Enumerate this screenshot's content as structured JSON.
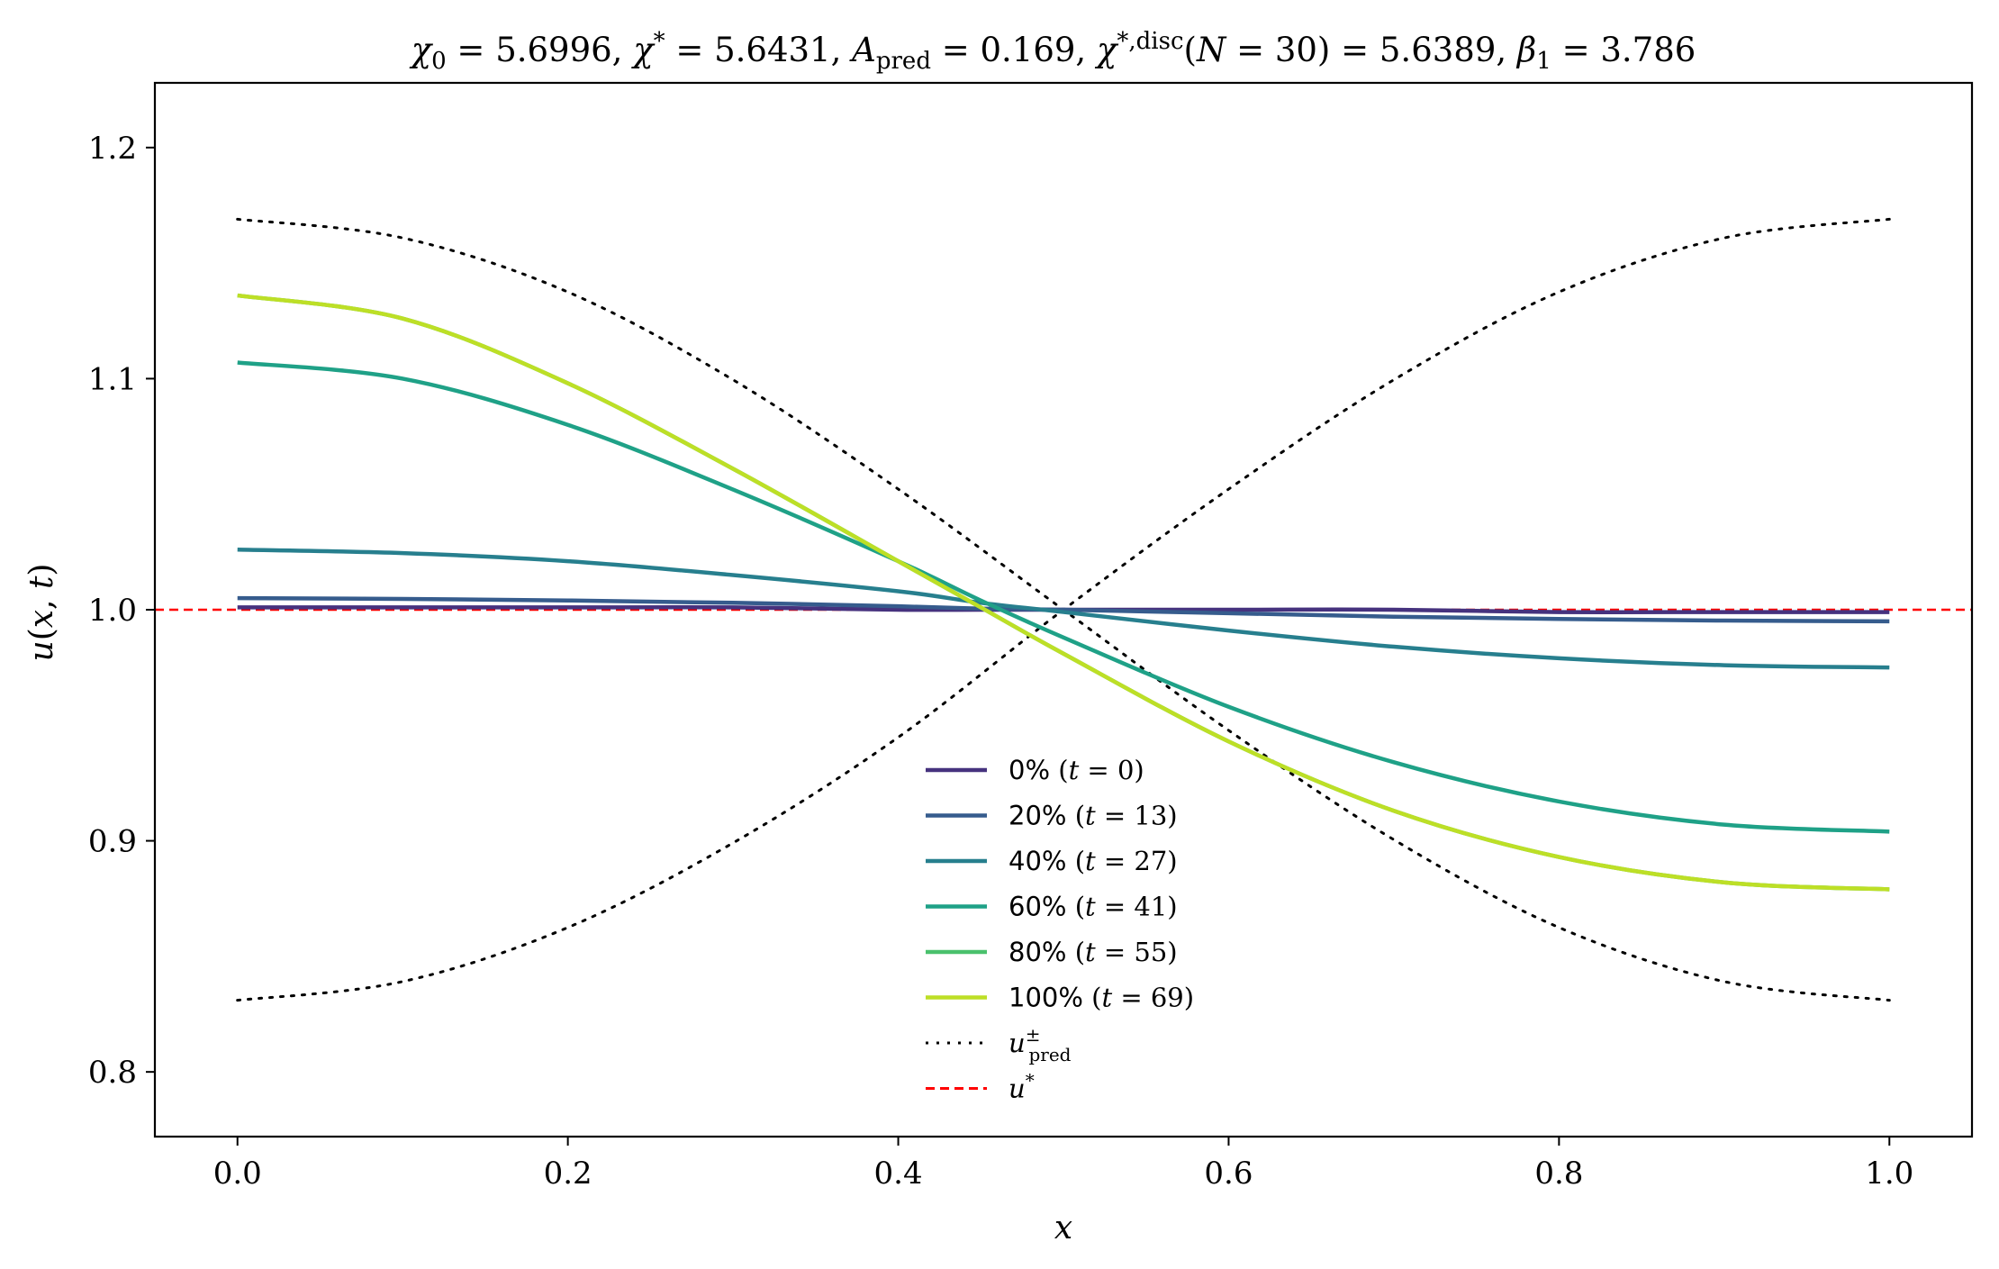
{
  "chart_data": {
    "type": "line",
    "title": "χ₀ = 5.6996,  χ* = 5.6431,  A_pred = 0.169,  χ*,disc(N = 30) = 5.6389,  β₁ = 3.786",
    "xlabel": "x",
    "ylabel": "u(x, t)",
    "xlim": [
      -0.05,
      1.05
    ],
    "ylim": [
      0.772,
      1.228
    ],
    "x_ticks": [
      0.0,
      0.2,
      0.4,
      0.6,
      0.8,
      1.0
    ],
    "x_tick_labels": [
      "0.0",
      "0.2",
      "0.4",
      "0.6",
      "0.8",
      "1.0"
    ],
    "y_ticks": [
      0.8,
      0.9,
      1.0,
      1.1,
      1.2
    ],
    "y_tick_labels": [
      "0.8",
      "0.9",
      "1.0",
      "1.1",
      "1.2"
    ],
    "grid": false,
    "legend_position": "bottom-center",
    "x": [
      0.0,
      0.1,
      0.2,
      0.3,
      0.4,
      0.45,
      0.5,
      0.6,
      0.7,
      0.8,
      0.9,
      1.0
    ],
    "series": [
      {
        "name": "0% (t = 0)",
        "color": "#46327e",
        "style": "solid",
        "values": [
          1.001,
          1.001,
          1.001,
          1.001,
          1.0,
          1.0,
          1.0,
          1.0,
          1.0,
          0.999,
          0.999,
          0.999
        ]
      },
      {
        "name": "20% (t = 13)",
        "color": "#365c8d",
        "style": "solid",
        "values": [
          1.005,
          1.0047,
          1.004,
          1.003,
          1.0015,
          1.0005,
          1.0,
          0.9985,
          0.997,
          0.996,
          0.9953,
          0.995
        ]
      },
      {
        "name": "40% (t = 27)",
        "color": "#277f8e",
        "style": "solid",
        "values": [
          1.026,
          1.0245,
          1.021,
          1.015,
          1.008,
          1.003,
          0.999,
          0.991,
          0.984,
          0.979,
          0.976,
          0.975
        ]
      },
      {
        "name": "60% (t = 41)",
        "color": "#1fa187",
        "style": "solid",
        "values": [
          1.107,
          1.1,
          1.08,
          1.052,
          1.021,
          1.004,
          0.988,
          0.958,
          0.934,
          0.917,
          0.907,
          0.904
        ]
      },
      {
        "name": "80% (t = 55)",
        "color": "#4ac16d",
        "style": "solid",
        "values": [
          1.136,
          1.126,
          1.098,
          1.061,
          1.021,
          1.001,
          0.981,
          0.943,
          0.913,
          0.893,
          0.882,
          0.879
        ]
      },
      {
        "name": "100% (t = 69)",
        "color": "#bddf26",
        "style": "solid",
        "values": [
          1.136,
          1.126,
          1.098,
          1.061,
          1.021,
          1.001,
          0.981,
          0.943,
          0.913,
          0.893,
          0.882,
          0.879
        ]
      }
    ],
    "reference_lines": [
      {
        "name": "u±pred (+)",
        "color": "#000000",
        "style": "dotted",
        "x": [
          0.0,
          0.1,
          0.2,
          0.3,
          0.4,
          0.5,
          0.6,
          0.7,
          0.8,
          0.9,
          1.0
        ],
        "values": [
          0.831,
          0.8391,
          0.8625,
          0.8991,
          0.9448,
          1.0,
          1.0522,
          1.0995,
          1.1375,
          1.1609,
          1.169
        ]
      },
      {
        "name": "u±pred (−)",
        "color": "#000000",
        "style": "dotted",
        "x": [
          0.0,
          0.1,
          0.2,
          0.3,
          0.4,
          0.5,
          0.6,
          0.7,
          0.8,
          0.9,
          1.0
        ],
        "values": [
          1.169,
          1.1609,
          1.1375,
          1.0995,
          1.0522,
          1.0,
          0.9478,
          0.9005,
          0.8625,
          0.8391,
          0.831
        ]
      },
      {
        "name": "u*",
        "color": "#ff0000",
        "style": "dashed",
        "y": 1.0
      }
    ],
    "legend": [
      {
        "label": "0% ",
        "math": "t = 0",
        "color": "#46327e",
        "style": "solid"
      },
      {
        "label": "20% ",
        "math": "t = 13",
        "color": "#365c8d",
        "style": "solid"
      },
      {
        "label": "40% ",
        "math": "t = 27",
        "color": "#277f8e",
        "style": "solid"
      },
      {
        "label": "60% ",
        "math": "t = 41",
        "color": "#1fa187",
        "style": "solid"
      },
      {
        "label": "80% ",
        "math": "t = 55",
        "color": "#4ac16d",
        "style": "solid"
      },
      {
        "label": "100% ",
        "math": "t = 69",
        "color": "#bddf26",
        "style": "solid"
      },
      {
        "label": "",
        "math": "u±pred",
        "color": "#000000",
        "style": "dotted"
      },
      {
        "label": "",
        "math": "u*",
        "color": "#ff0000",
        "style": "dashed"
      }
    ]
  }
}
